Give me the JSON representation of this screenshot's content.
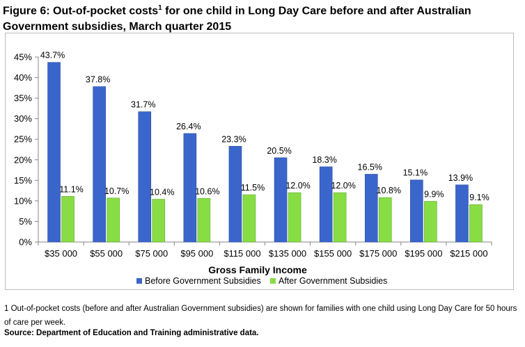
{
  "page": {
    "title_pre": "Figure 6: Out-of-pocket costs",
    "title_sup": "1",
    "title_post": " for one child in Long Day Care before and after Australian Government subsidies, March quarter 2015",
    "footnote": "1 Out-of-pocket costs (before and after Australian Government subsidies) are shown for families with one child using Long Day Care for 50 hours of care per week.",
    "source": "Source:  Department of Education and Training administrative data."
  },
  "colors": {
    "before": "#3a66cc",
    "after": "#88dd44"
  },
  "chart_data": {
    "type": "bar",
    "title": "",
    "xlabel": "Gross Family Income",
    "ylabel": "",
    "ylim": [
      0,
      45
    ],
    "yticks": [
      "0%",
      "5%",
      "10%",
      "15%",
      "20%",
      "25%",
      "30%",
      "35%",
      "40%",
      "45%"
    ],
    "categories": [
      "$35 000",
      "$55 000",
      "$75 000",
      "$95 000",
      "$115 000",
      "$135 000",
      "$155 000",
      "$175 000",
      "$195 000",
      "$215 000"
    ],
    "series": [
      {
        "name": "Before Government Subsidies",
        "values": [
          43.7,
          37.8,
          31.7,
          26.4,
          23.3,
          20.5,
          18.3,
          16.5,
          15.1,
          13.9
        ],
        "labels": [
          "43.7%",
          "37.8%",
          "31.7%",
          "26.4%",
          "23.3%",
          "20.5%",
          "18.3%",
          "16.5%",
          "15.1%",
          "13.9%"
        ]
      },
      {
        "name": "After Government Subsidies",
        "values": [
          11.1,
          10.7,
          10.4,
          10.6,
          11.5,
          12.0,
          12.0,
          10.8,
          9.9,
          9.1
        ],
        "labels": [
          "11.1%",
          "10.7%",
          "10.4%",
          "10.6%",
          "11.5%",
          "12.0%",
          "12.0%",
          "10.8%",
          "9.9%",
          "9.1%"
        ]
      }
    ],
    "legend_position": "bottom",
    "grid": false
  }
}
